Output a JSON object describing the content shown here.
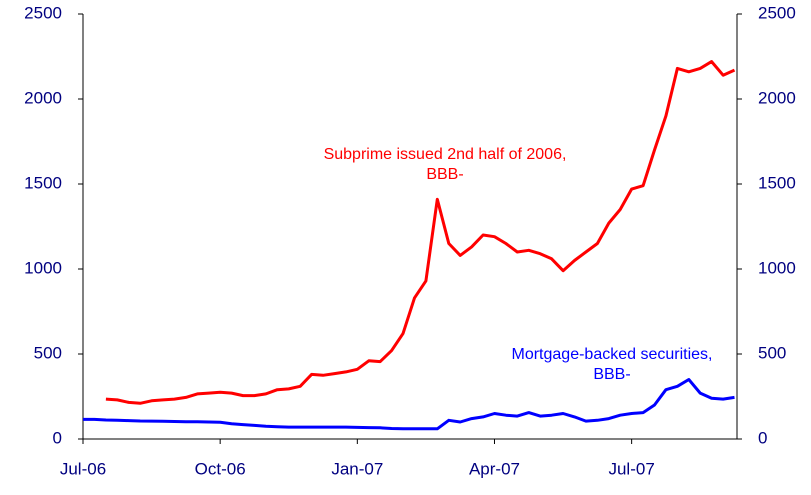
{
  "chart_data": {
    "type": "line",
    "categories": [
      "Jul-06",
      null,
      null,
      null,
      null,
      null,
      null,
      null,
      null,
      null,
      null,
      null,
      "Oct-06",
      null,
      null,
      null,
      null,
      null,
      null,
      null,
      null,
      null,
      null,
      null,
      "Jan-07",
      null,
      null,
      null,
      null,
      null,
      null,
      null,
      null,
      null,
      null,
      null,
      "Apr-07",
      null,
      null,
      null,
      null,
      null,
      null,
      null,
      null,
      null,
      null,
      null,
      "Jul-07",
      null,
      null,
      null,
      null,
      null,
      null,
      null,
      null,
      null
    ],
    "series": [
      {
        "name": "Subprime issued 2nd half of 2006, BBB-",
        "color": "#ff0000",
        "values": [
          null,
          null,
          235,
          230,
          215,
          210,
          225,
          230,
          235,
          245,
          265,
          270,
          275,
          270,
          255,
          255,
          265,
          290,
          295,
          310,
          380,
          375,
          385,
          395,
          410,
          460,
          455,
          520,
          620,
          830,
          930,
          1410,
          1150,
          1080,
          1130,
          1200,
          1190,
          1150,
          1100,
          1110,
          1090,
          1060,
          990,
          1050,
          1100,
          1150,
          1270,
          1350,
          1470,
          1490,
          1700,
          1900,
          2180,
          2160,
          2180,
          2220,
          2140,
          2170
        ]
      },
      {
        "name": "Mortgage-backed securities, BBB-",
        "color": "#0000ff",
        "values": [
          115,
          115,
          112,
          110,
          108,
          106,
          105,
          104,
          103,
          102,
          101,
          100,
          98,
          90,
          85,
          80,
          75,
          72,
          70,
          70,
          70,
          70,
          70,
          70,
          68,
          67,
          66,
          62,
          60,
          60,
          60,
          60,
          110,
          100,
          120,
          130,
          150,
          140,
          135,
          155,
          135,
          140,
          150,
          130,
          105,
          110,
          120,
          140,
          150,
          155,
          200,
          290,
          310,
          350,
          270,
          240,
          235,
          245
        ]
      }
    ],
    "annotations": [
      {
        "text": [
          "Subprime issued 2nd half of 2006,",
          "BBB-"
        ],
        "color": "#ff0000"
      },
      {
        "text": [
          "Mortgage-backed securities,",
          "BBB-"
        ],
        "color": "#0000ff"
      }
    ],
    "ylim": [
      0,
      2500
    ],
    "yticks": [
      0,
      500,
      1000,
      1500,
      2000,
      2500
    ],
    "y2lim": [
      0,
      2500
    ],
    "y2ticks": [
      0,
      500,
      1000,
      1500,
      2000,
      2500
    ],
    "axis_color": "#000080"
  }
}
